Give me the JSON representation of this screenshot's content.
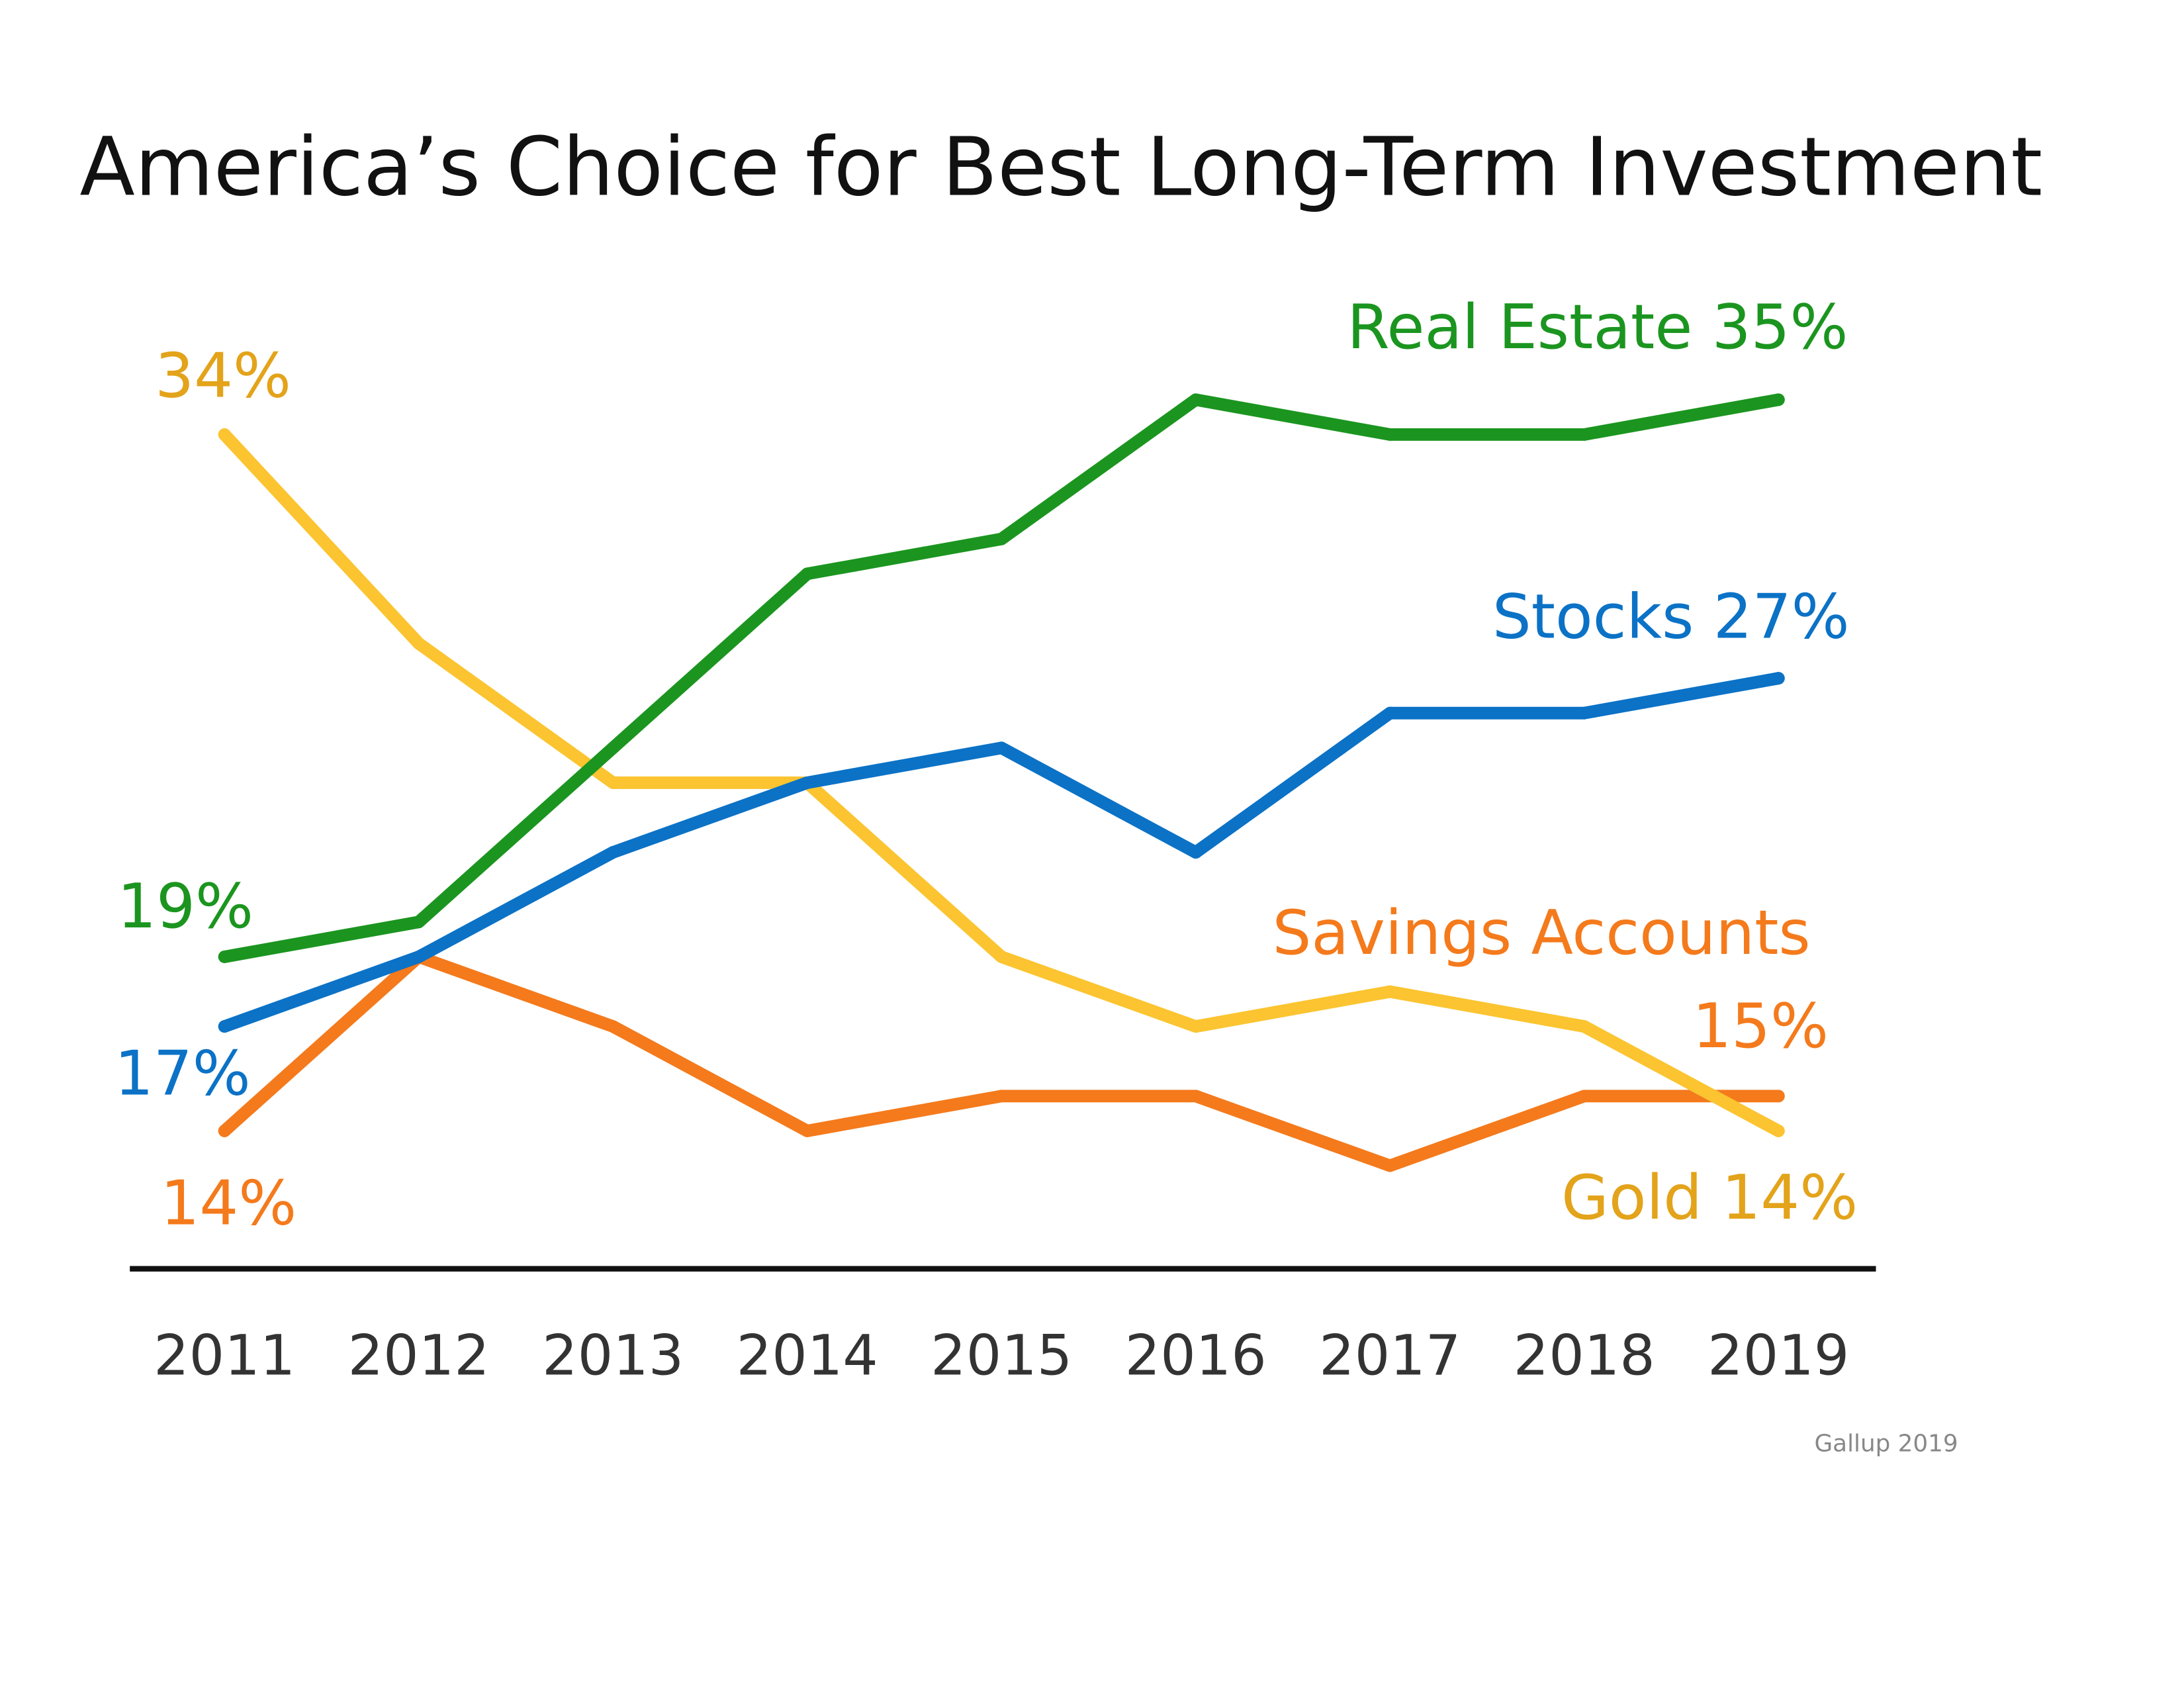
{
  "chart_data": {
    "type": "line",
    "title": "America’s Choice for Best Long-Term Investment",
    "xlabel": "",
    "ylabel": "",
    "categories": [
      "2011",
      "2012",
      "2013",
      "2014",
      "2015",
      "2016",
      "2017",
      "2018",
      "2019"
    ],
    "ylim": [
      10,
      38
    ],
    "grid": false,
    "series": [
      {
        "name": "Real Estate",
        "color": "#1b951f",
        "values": [
          19,
          20,
          25,
          30,
          31,
          35,
          34,
          34,
          35
        ]
      },
      {
        "name": "Stocks",
        "color": "#0b72c6",
        "values": [
          17,
          19,
          22,
          24,
          25,
          22,
          26,
          26,
          27
        ]
      },
      {
        "name": "Gold",
        "color": "#fbc430",
        "values": [
          34,
          28,
          24,
          24,
          19,
          17,
          18,
          17,
          14
        ]
      },
      {
        "name": "Savings Accounts",
        "color": "#f47a1c",
        "values": [
          14,
          19,
          17,
          14,
          15,
          15,
          13,
          15,
          15
        ]
      }
    ],
    "annotations": {
      "gold_start": "34%",
      "real_estate_end": "Real Estate 35%",
      "stocks_end": "Stocks 27%",
      "real_estate_start": "19%",
      "stocks_start": "17%",
      "savings_start": "14%",
      "savings_name": "Savings Accounts",
      "savings_end": "15%",
      "gold_end": "Gold 14%"
    },
    "label_colors": {
      "gold": "#e3a31a"
    },
    "source": "Gallup 2019"
  }
}
